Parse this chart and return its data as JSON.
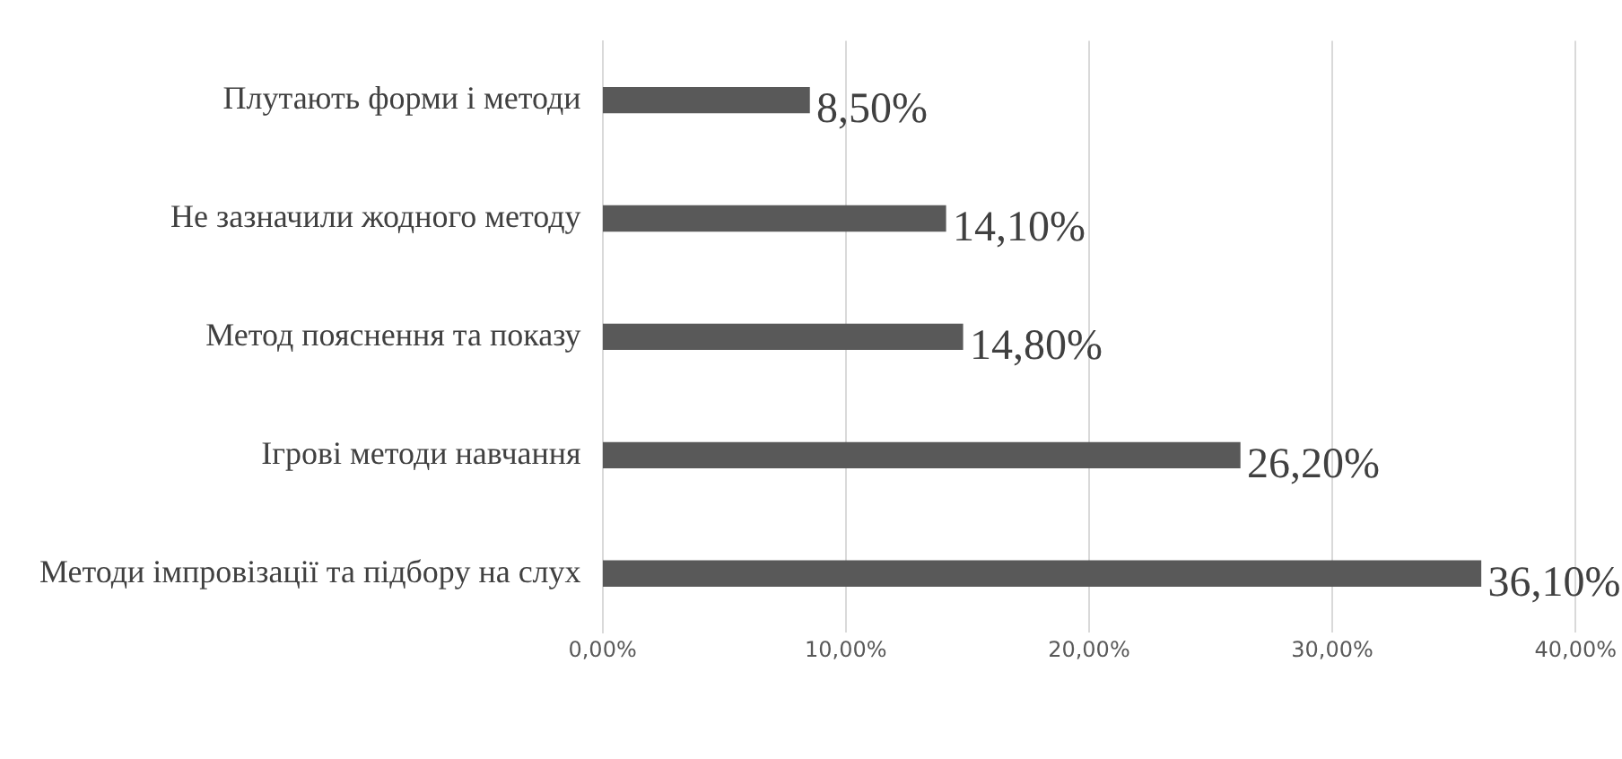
{
  "chart_data": {
    "type": "bar",
    "orientation": "horizontal",
    "categories": [
      "Плутають форми і методи",
      "Не зазначили жодного методу",
      "Метод пояснення та показу",
      "Ігрові методи навчання",
      "Методи імпровізації та підбору на слух"
    ],
    "values": [
      8.5,
      14.1,
      14.8,
      26.2,
      36.1
    ],
    "value_labels": [
      "8,50%",
      "14,10%",
      "14,80%",
      "26,20%",
      "36,10%"
    ],
    "color": "#595959",
    "xlim": [
      0,
      40
    ],
    "xticks": [
      {
        "value": 0,
        "label": "0,00%"
      },
      {
        "value": 10,
        "label": "10,00%"
      },
      {
        "value": 20,
        "label": "20,00%"
      },
      {
        "value": 30,
        "label": "30,00%"
      },
      {
        "value": 40,
        "label": "40,00%"
      }
    ],
    "grid": "x",
    "legend": false
  }
}
